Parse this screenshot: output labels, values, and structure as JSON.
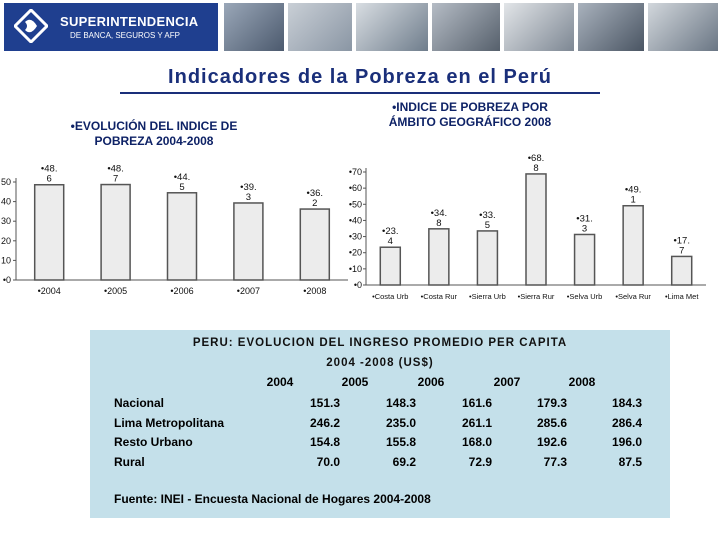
{
  "header": {
    "logo_name": "SUPERINTENDENCIA",
    "logo_subtitle": "DE BANCA, SEGUROS Y AFP"
  },
  "page_title": "Indicadores de la Pobreza en el Perú",
  "chart_data": [
    {
      "type": "bar",
      "title_line1": "•EVOLUCIÓN DEL INDICE DE",
      "title_line2": "POBREZA 2004-2008",
      "categories": [
        "•2004",
        "•2005",
        "•2006",
        "•2007",
        "•2008"
      ],
      "values": [
        48.6,
        48.7,
        44.5,
        39.3,
        36.2
      ],
      "data_labels": [
        [
          "•48.",
          "6"
        ],
        [
          "•48.",
          "7"
        ],
        [
          "•44.",
          "5"
        ],
        [
          "•39.",
          "3"
        ],
        [
          "•36.",
          "2"
        ]
      ],
      "y_ticks": [
        "50",
        "40",
        "30",
        "20",
        "10",
        "•0"
      ],
      "ylim": [
        0,
        50
      ],
      "bar_color": "#ececec",
      "bar_edge": "#555555"
    },
    {
      "type": "bar",
      "title_line1": "•INDICE DE POBREZA POR",
      "title_line2": "ÁMBITO GEOGRÁFICO 2008",
      "categories": [
        "•Costa Urb",
        "•Costa Rur",
        "•Sierra Urb",
        "•Sierra Rur",
        "•Selva Urb",
        "•Selva Rur",
        "•Lima Met"
      ],
      "values": [
        23.4,
        34.8,
        33.5,
        68.8,
        31.3,
        49.1,
        17.7
      ],
      "data_labels": [
        [
          "•23.",
          "4"
        ],
        [
          "•34.",
          "8"
        ],
        [
          "•33.",
          "5"
        ],
        [
          "•68.",
          "8"
        ],
        [
          "•31.",
          "3"
        ],
        [
          "•49.",
          "1"
        ],
        [
          "•17.",
          "7"
        ]
      ],
      "y_ticks": [
        "•70",
        "•60",
        "•50",
        "•40",
        "•30",
        "•20",
        "•10",
        "•0"
      ],
      "ylim": [
        0,
        70
      ],
      "bar_color": "#ececec",
      "bar_edge": "#555555"
    }
  ],
  "income_table": {
    "title": "PERU: EVOLUCION DEL INGRESO PROMEDIO PER CAPITA",
    "subtitle": "2004 -2008 (US$)",
    "years": [
      "2004",
      "2005",
      "2006",
      "2007",
      "2008"
    ],
    "rows": [
      {
        "label": "Nacional",
        "values": [
          "151.3",
          "148.3",
          "161.6",
          "179.3",
          "184.3"
        ]
      },
      {
        "label": "Lima Metropolitana",
        "values": [
          "246.2",
          "235.0",
          "261.1",
          "285.6",
          "286.4"
        ]
      },
      {
        "label": "Resto Urbano",
        "values": [
          "154.8",
          "155.8",
          "168.0",
          "192.6",
          "196.0"
        ]
      },
      {
        "label": "Rural",
        "values": [
          "70.0",
          "69.2",
          "72.9",
          "77.3",
          "87.5"
        ]
      }
    ],
    "source": "Fuente: INEI - Encuesta Nacional de Hogares 2004-2008"
  }
}
